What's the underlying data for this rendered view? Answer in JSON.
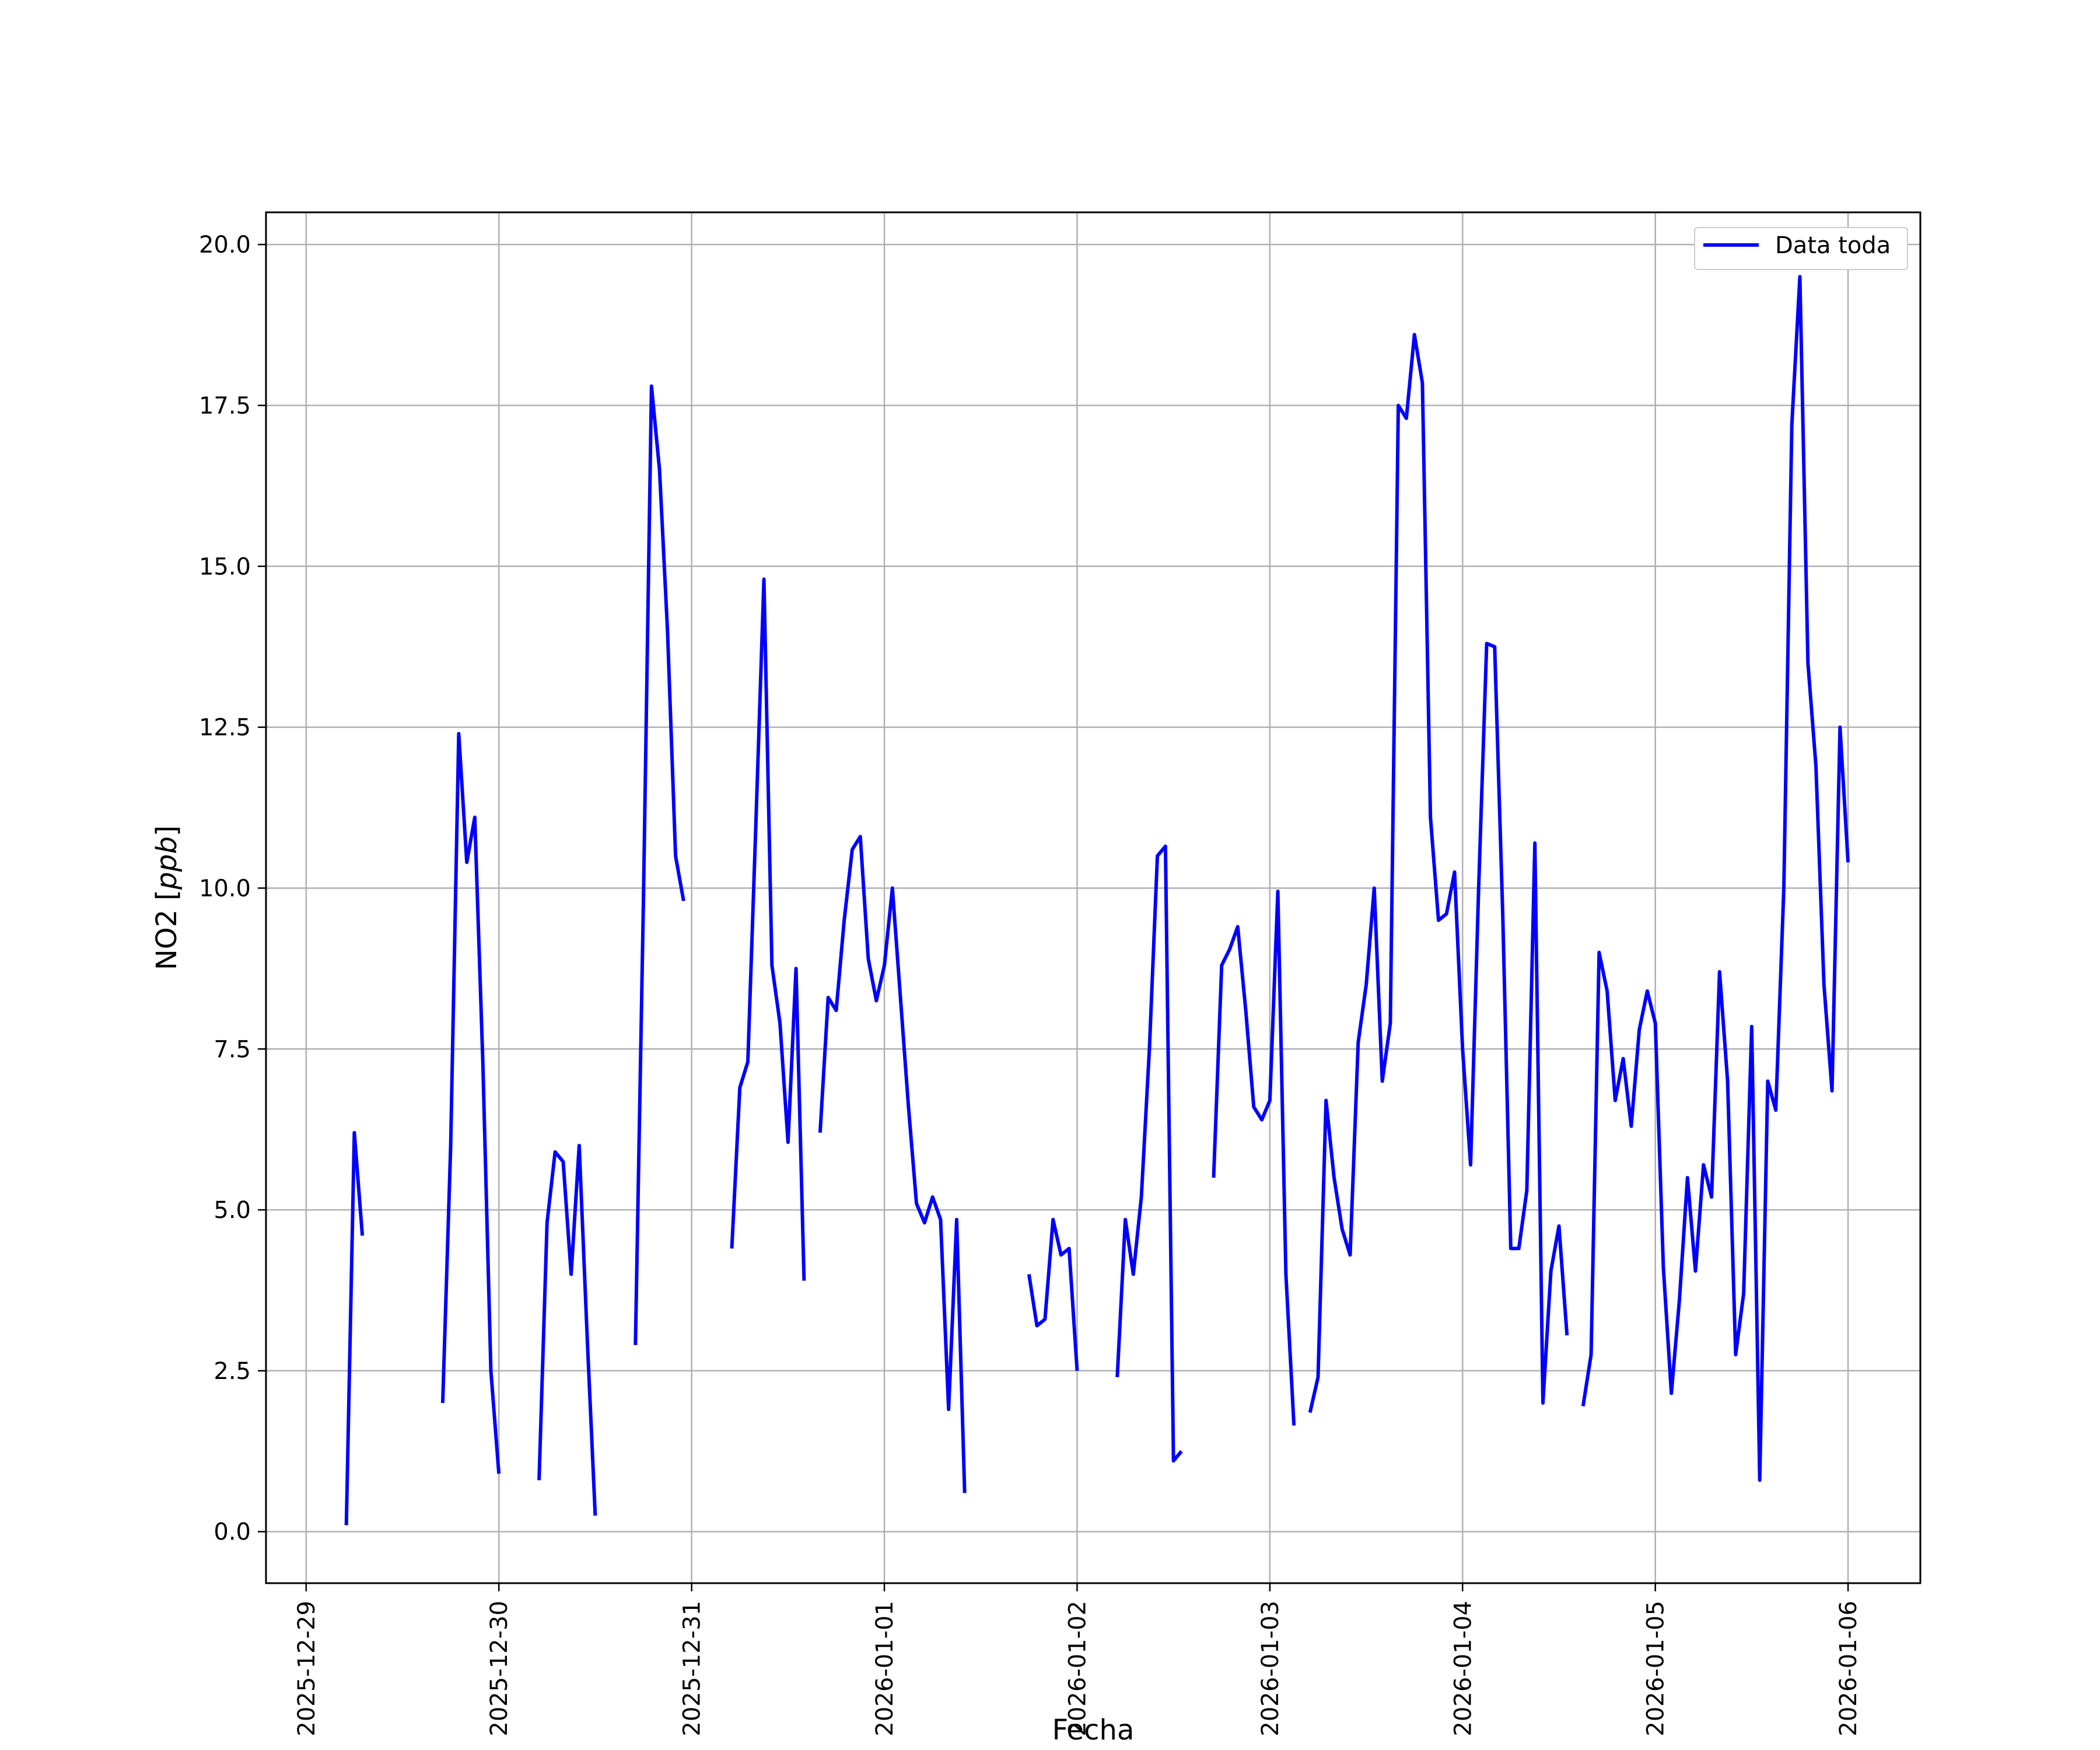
{
  "chart_data": {
    "type": "line",
    "title": "",
    "xlabel": "Fecha",
    "ylabel": "NO2 [ppb]",
    "ylabel_prefix": "NO2 [",
    "ylabel_unit": "ppb",
    "ylabel_suffix": "]",
    "xlim": [
      "2025-12-28 19:00",
      "2026-01-06 09:00"
    ],
    "ylim": [
      -0.8,
      20.5
    ],
    "x_ticks": [
      "2025-12-29",
      "2025-12-30",
      "2025-12-31",
      "2026-01-01",
      "2026-01-02",
      "2026-01-03",
      "2026-01-04",
      "2026-01-05",
      "2026-01-06"
    ],
    "y_ticks": [
      "0.0",
      "2.5",
      "5.0",
      "7.5",
      "10.0",
      "12.5",
      "15.0",
      "17.5",
      "20.0"
    ],
    "grid": true,
    "legend_position": "top-right",
    "color": "#0000ff",
    "series": [
      {
        "name": "Data toda",
        "points": [
          [
            "2025-12-29 05:00",
            0.1
          ],
          [
            "2025-12-29 06:00",
            6.2
          ],
          [
            "2025-12-29 07:00",
            4.6
          ],
          [
            "2025-12-29 08:00",
            null
          ],
          [
            "2025-12-29 17:00",
            2.0
          ],
          [
            "2025-12-29 18:00",
            6.0
          ],
          [
            "2025-12-29 19:00",
            12.4
          ],
          [
            "2025-12-29 20:00",
            10.4
          ],
          [
            "2025-12-29 21:00",
            11.1
          ],
          [
            "2025-12-29 22:00",
            7.3
          ],
          [
            "2025-12-29 23:00",
            2.5
          ],
          [
            "2025-12-30 00:00",
            0.9
          ],
          [
            "2025-12-30 01:00",
            null
          ],
          [
            "2025-12-30 05:00",
            0.8
          ],
          [
            "2025-12-30 06:00",
            4.8
          ],
          [
            "2025-12-30 07:00",
            5.9
          ],
          [
            "2025-12-30 08:00",
            5.75
          ],
          [
            "2025-12-30 09:00",
            4.0
          ],
          [
            "2025-12-30 10:00",
            6.0
          ],
          [
            "2025-12-30 11:00",
            3.0
          ],
          [
            "2025-12-30 12:00",
            0.25
          ],
          [
            "2025-12-30 13:00",
            null
          ],
          [
            "2025-12-30 17:00",
            2.9
          ],
          [
            "2025-12-30 18:00",
            9.8
          ],
          [
            "2025-12-30 19:00",
            17.8
          ],
          [
            "2025-12-30 20:00",
            16.5
          ],
          [
            "2025-12-30 21:00",
            14.0
          ],
          [
            "2025-12-30 22:00",
            10.5
          ],
          [
            "2025-12-30 23:00",
            9.8
          ],
          [
            "2025-12-31 00:00",
            null
          ],
          [
            "2025-12-31 05:00",
            4.4
          ],
          [
            "2025-12-31 06:00",
            6.9
          ],
          [
            "2025-12-31 07:00",
            7.3
          ],
          [
            "2025-12-31 08:00",
            11.0
          ],
          [
            "2025-12-31 09:00",
            14.8
          ],
          [
            "2025-12-31 10:00",
            8.8
          ],
          [
            "2025-12-31 11:00",
            7.9
          ],
          [
            "2025-12-31 12:00",
            6.05
          ],
          [
            "2025-12-31 13:00",
            8.75
          ],
          [
            "2025-12-31 14:00",
            3.9
          ],
          [
            "2025-12-31 15:00",
            null
          ],
          [
            "2025-12-31 16:00",
            6.2
          ],
          [
            "2025-12-31 17:00",
            8.3
          ],
          [
            "2025-12-31 18:00",
            8.1
          ],
          [
            "2025-12-31 19:00",
            9.5
          ],
          [
            "2025-12-31 20:00",
            10.6
          ],
          [
            "2025-12-31 21:00",
            10.8
          ],
          [
            "2025-12-31 22:00",
            8.9
          ],
          [
            "2025-12-31 23:00",
            8.25
          ],
          [
            "2026-01-01 00:00",
            8.8
          ],
          [
            "2026-01-01 01:00",
            10.0
          ],
          [
            "2026-01-01 02:00",
            8.3
          ],
          [
            "2026-01-01 03:00",
            6.6
          ],
          [
            "2026-01-01 04:00",
            5.1
          ],
          [
            "2026-01-01 05:00",
            4.8
          ],
          [
            "2026-01-01 06:00",
            5.2
          ],
          [
            "2026-01-01 07:00",
            4.85
          ],
          [
            "2026-01-01 08:00",
            1.9
          ],
          [
            "2026-01-01 09:00",
            4.85
          ],
          [
            "2026-01-01 10:00",
            0.6
          ],
          [
            "2026-01-01 11:00",
            null
          ],
          [
            "2026-01-01 18:00",
            4.0
          ],
          [
            "2026-01-01 19:00",
            3.2
          ],
          [
            "2026-01-01 20:00",
            3.3
          ],
          [
            "2026-01-01 21:00",
            4.85
          ],
          [
            "2026-01-01 22:00",
            4.3
          ],
          [
            "2026-01-01 23:00",
            4.4
          ],
          [
            "2026-01-02 00:00",
            2.5
          ],
          [
            "2026-01-02 01:00",
            null
          ],
          [
            "2026-01-02 05:00",
            2.4
          ],
          [
            "2026-01-02 06:00",
            4.85
          ],
          [
            "2026-01-02 07:00",
            4.0
          ],
          [
            "2026-01-02 08:00",
            5.2
          ],
          [
            "2026-01-02 09:00",
            7.5
          ],
          [
            "2026-01-02 10:00",
            10.5
          ],
          [
            "2026-01-02 11:00",
            10.65
          ],
          [
            "2026-01-02 12:00",
            1.1
          ],
          [
            "2026-01-02 13:00",
            1.25
          ],
          [
            "2026-01-02 14:00",
            null
          ],
          [
            "2026-01-02 17:00",
            5.5
          ],
          [
            "2026-01-02 18:00",
            8.8
          ],
          [
            "2026-01-02 19:00",
            9.05
          ],
          [
            "2026-01-02 20:00",
            9.4
          ],
          [
            "2026-01-02 21:00",
            8.1
          ],
          [
            "2026-01-02 22:00",
            6.6
          ],
          [
            "2026-01-02 23:00",
            6.4
          ],
          [
            "2026-01-03 00:00",
            6.7
          ],
          [
            "2026-01-03 01:00",
            9.95
          ],
          [
            "2026-01-03 02:00",
            4.0
          ],
          [
            "2026-01-03 03:00",
            1.65
          ],
          [
            "2026-01-03 04:00",
            null
          ],
          [
            "2026-01-03 05:00",
            1.85
          ],
          [
            "2026-01-03 06:00",
            2.4
          ],
          [
            "2026-01-03 07:00",
            6.7
          ],
          [
            "2026-01-03 08:00",
            5.5
          ],
          [
            "2026-01-03 09:00",
            4.7
          ],
          [
            "2026-01-03 10:00",
            4.3
          ],
          [
            "2026-01-03 11:00",
            7.6
          ],
          [
            "2026-01-03 12:00",
            8.5
          ],
          [
            "2026-01-03 13:00",
            10.0
          ],
          [
            "2026-01-03 14:00",
            7.0
          ],
          [
            "2026-01-03 15:00",
            7.9
          ],
          [
            "2026-01-03 16:00",
            17.5
          ],
          [
            "2026-01-03 17:00",
            17.3
          ],
          [
            "2026-01-03 18:00",
            18.6
          ],
          [
            "2026-01-03 19:00",
            17.85
          ],
          [
            "2026-01-03 20:00",
            11.1
          ],
          [
            "2026-01-03 21:00",
            9.5
          ],
          [
            "2026-01-03 22:00",
            9.6
          ],
          [
            "2026-01-03 23:00",
            10.25
          ],
          [
            "2026-01-04 00:00",
            7.5
          ],
          [
            "2026-01-04 01:00",
            5.7
          ],
          [
            "2026-01-04 02:00",
            10.0
          ],
          [
            "2026-01-04 03:00",
            13.8
          ],
          [
            "2026-01-04 04:00",
            13.75
          ],
          [
            "2026-01-04 05:00",
            9.6
          ],
          [
            "2026-01-04 06:00",
            4.4
          ],
          [
            "2026-01-04 07:00",
            4.4
          ],
          [
            "2026-01-04 08:00",
            5.3
          ],
          [
            "2026-01-04 09:00",
            10.7
          ],
          [
            "2026-01-04 10:00",
            2.0
          ],
          [
            "2026-01-04 11:00",
            4.05
          ],
          [
            "2026-01-04 12:00",
            4.75
          ],
          [
            "2026-01-04 13:00",
            3.05
          ],
          [
            "2026-01-04 14:00",
            null
          ],
          [
            "2026-01-04 15:00",
            1.95
          ],
          [
            "2026-01-04 16:00",
            2.75
          ],
          [
            "2026-01-04 17:00",
            9.0
          ],
          [
            "2026-01-04 18:00",
            8.4
          ],
          [
            "2026-01-04 19:00",
            6.7
          ],
          [
            "2026-01-04 20:00",
            7.35
          ],
          [
            "2026-01-04 21:00",
            6.3
          ],
          [
            "2026-01-04 22:00",
            7.8
          ],
          [
            "2026-01-04 23:00",
            8.4
          ],
          [
            "2026-01-05 00:00",
            7.9
          ],
          [
            "2026-01-05 01:00",
            4.1
          ],
          [
            "2026-01-05 02:00",
            2.15
          ],
          [
            "2026-01-05 03:00",
            3.6
          ],
          [
            "2026-01-05 04:00",
            5.5
          ],
          [
            "2026-01-05 05:00",
            4.05
          ],
          [
            "2026-01-05 06:00",
            5.7
          ],
          [
            "2026-01-05 07:00",
            5.2
          ],
          [
            "2026-01-05 08:00",
            8.7
          ],
          [
            "2026-01-05 09:00",
            7.0
          ],
          [
            "2026-01-05 10:00",
            2.75
          ],
          [
            "2026-01-05 11:00",
            3.7
          ],
          [
            "2026-01-05 12:00",
            7.85
          ],
          [
            "2026-01-05 13:00",
            0.8
          ],
          [
            "2026-01-05 14:00",
            7.0
          ],
          [
            "2026-01-05 15:00",
            6.55
          ],
          [
            "2026-01-05 16:00",
            10.0
          ],
          [
            "2026-01-05 17:00",
            17.2
          ],
          [
            "2026-01-05 18:00",
            19.5
          ],
          [
            "2026-01-05 19:00",
            13.5
          ],
          [
            "2026-01-05 20:00",
            11.9
          ],
          [
            "2026-01-05 21:00",
            8.5
          ],
          [
            "2026-01-05 22:00",
            6.85
          ],
          [
            "2026-01-05 23:00",
            12.5
          ],
          [
            "2026-01-06 00:00",
            10.4
          ]
        ]
      }
    ]
  }
}
